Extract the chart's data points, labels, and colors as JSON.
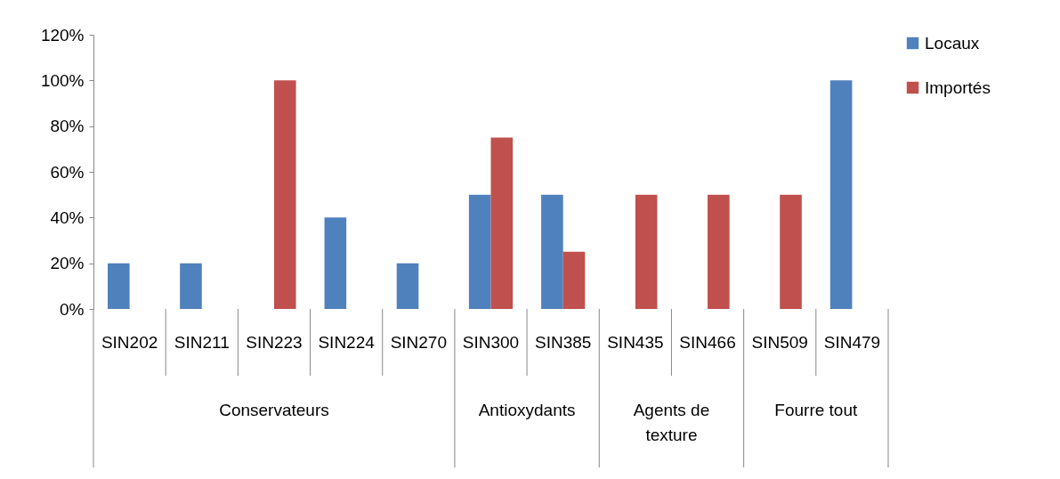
{
  "chart_data": {
    "type": "bar",
    "categories": [
      "SIN202",
      "SIN211",
      "SIN223",
      "SIN224",
      "SIN270",
      "SIN300",
      "SIN385",
      "SIN435",
      "SIN466",
      "SIN509",
      "SIN479"
    ],
    "series": [
      {
        "name": "Locaux",
        "color": "#4f81bd",
        "values": [
          20,
          20,
          null,
          40,
          20,
          50,
          50,
          null,
          null,
          null,
          100
        ]
      },
      {
        "name": "Importés",
        "color": "#c0504d",
        "values": [
          null,
          null,
          100,
          null,
          null,
          75,
          25,
          50,
          50,
          50,
          null
        ]
      }
    ],
    "ylim": [
      0,
      120
    ],
    "yticks": [
      {
        "value": 0,
        "label": "0%"
      },
      {
        "value": 20,
        "label": "20%"
      },
      {
        "value": 40,
        "label": "40%"
      },
      {
        "value": 60,
        "label": "60%"
      },
      {
        "value": 80,
        "label": "80%"
      },
      {
        "value": 100,
        "label": "100%"
      },
      {
        "value": 120,
        "label": "120%"
      }
    ],
    "annotations": [
      "Conservateurs",
      "Antioxydants",
      "Agents de\ntexture",
      "Fourre tout"
    ],
    "grid": false,
    "legend": "right"
  }
}
